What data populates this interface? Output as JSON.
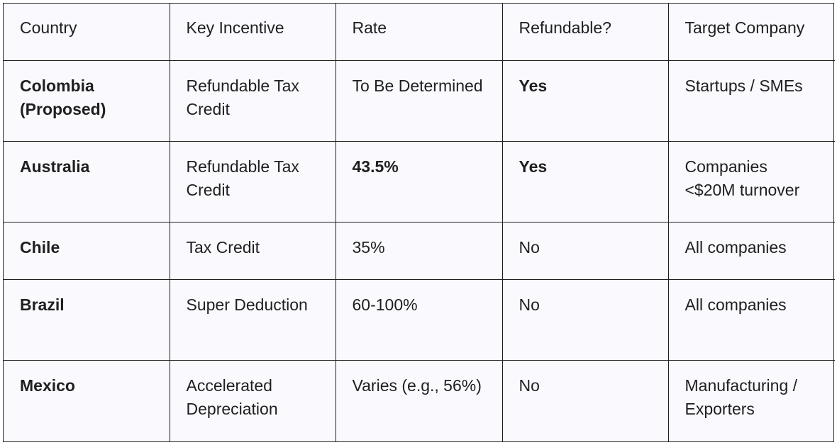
{
  "table": {
    "headers": [
      "Country",
      "Key Incentive",
      "Rate",
      "Refundable?",
      "Target Company"
    ],
    "rows": [
      [
        "Colombia (Proposed)",
        "Refundable Tax Credit",
        "To Be Determined",
        "Yes",
        "Startups / SMEs"
      ],
      [
        "Australia",
        "Refundable Tax Credit",
        "43.5%",
        "Yes",
        "Companies <$20M turnover"
      ],
      [
        "Chile",
        "Tax Credit",
        "35%",
        "No",
        "All companies"
      ],
      [
        "Brazil",
        "Super Deduction",
        "60-100%",
        "No",
        "All companies"
      ],
      [
        "Mexico",
        "Accelerated Depreciation",
        "Varies (e.g., 56%)",
        "No",
        "Manufacturing / Exporters"
      ]
    ]
  }
}
